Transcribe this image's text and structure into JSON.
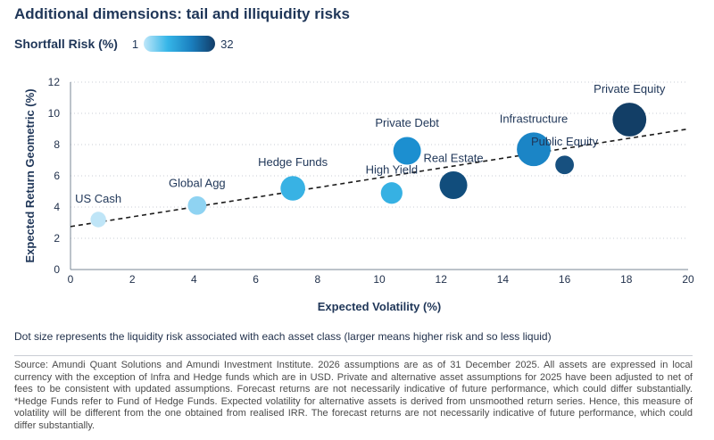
{
  "title": "Additional dimensions: tail and illiquidity risks",
  "legend": {
    "label": "Shortfall Risk (%)",
    "min": "1",
    "max": "32"
  },
  "note": "Dot size represents the liquidity risk associated with each asset class (larger means higher risk and so less liquid)",
  "source": "Source: Amundi Quant Solutions and Amundi Investment Institute. 2026 assumptions are as of 31 December 2025. All assets are expressed in local currency with the exception of Infra and Hedge funds which are in USD. Private and alternative asset assumptions for 2025 have been adjusted to net of fees to be consistent with updated assumptions. Forecast returns are not necessarily indicative of future performance, which could differ substantially. *Hedge Funds refer to Fund of Hedge Funds. Expected volatility for alternative assets is derived from unsmoothed return series. Hence, this measure of volatility will be different from the one obtained from realised IRR. The forecast returns are not necessarily indicative of future performance, which could differ substantially.",
  "chart_data": {
    "type": "scatter",
    "xlabel": "Expected Volatility (%)",
    "ylabel": "Expected Return Geometric (%)",
    "xlim": [
      0,
      20
    ],
    "ylim": [
      0,
      12
    ],
    "xticks": [
      "0",
      "2",
      "4",
      "6",
      "8",
      "10",
      "12",
      "14",
      "16",
      "18",
      "20"
    ],
    "yticks": [
      "0",
      "2",
      "4",
      "6",
      "8",
      "10",
      "12"
    ],
    "grid": "horizontal dotted",
    "trendline": {
      "style": "dashed",
      "x": [
        0,
        20
      ],
      "y": [
        2.75,
        9.0
      ]
    },
    "points": [
      {
        "label": "US Cash",
        "x": 0.9,
        "y": 3.2,
        "size": 1,
        "color": "#bfe5f7"
      },
      {
        "label": "Global Agg",
        "x": 4.1,
        "y": 4.1,
        "size": 2,
        "color": "#8fd3f2"
      },
      {
        "label": "Hedge Funds",
        "x": 7.2,
        "y": 5.2,
        "size": 4,
        "color": "#38b2e4"
      },
      {
        "label": "High Yield",
        "x": 10.4,
        "y": 4.9,
        "size": 3,
        "color": "#36b1e3"
      },
      {
        "label": "Private Debt",
        "x": 10.9,
        "y": 7.6,
        "size": 5,
        "color": "#1c8fd0"
      },
      {
        "label": "Real Estate",
        "x": 12.4,
        "y": 5.4,
        "size": 5,
        "color": "#114d7c"
      },
      {
        "label": "Infrastructure",
        "x": 15.0,
        "y": 7.7,
        "size": 7,
        "color": "#1b85c6"
      },
      {
        "label": "Public Equity",
        "x": 16.0,
        "y": 6.7,
        "size": 2,
        "color": "#17507f"
      },
      {
        "label": "Private Equity",
        "x": 18.1,
        "y": 9.6,
        "size": 7,
        "color": "#123e66"
      }
    ]
  }
}
